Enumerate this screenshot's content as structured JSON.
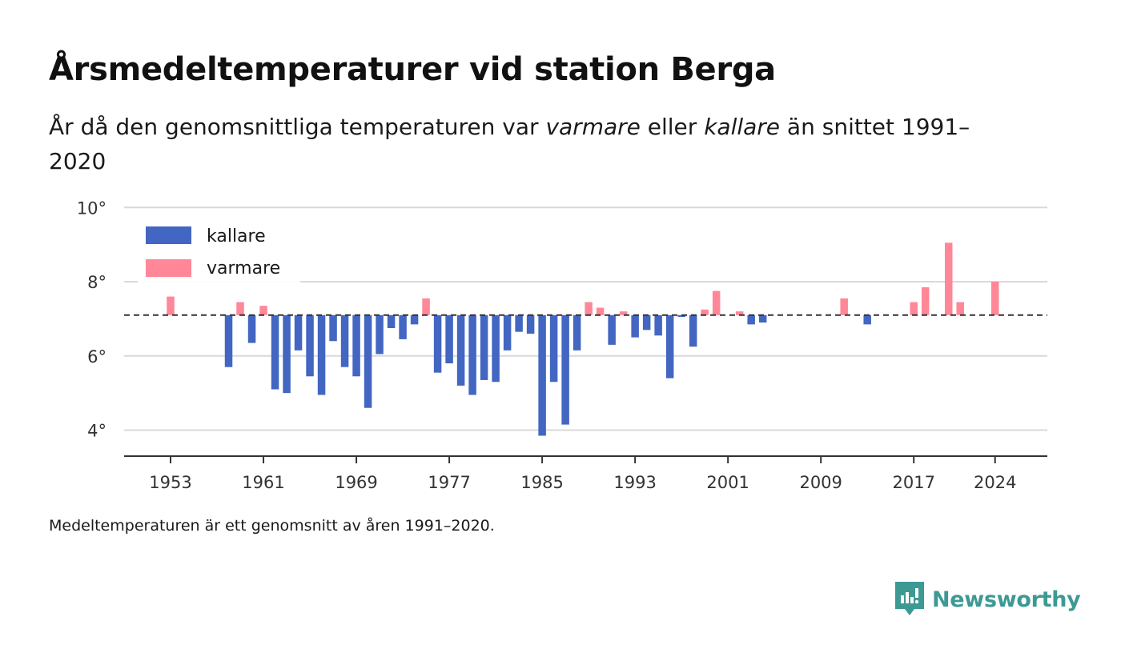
{
  "header": {
    "title": "Årsmedeltemperaturer vid station Berga",
    "subtitle_pre": "År då den genomsnittliga temperaturen var ",
    "subtitle_em1": "varmare",
    "subtitle_mid": " eller ",
    "subtitle_em2": "kallare",
    "subtitle_post": " än snittet 1991–2020"
  },
  "footer": {
    "note": "Medeltemperaturen är ett genomsnitt av åren 1991–2020.",
    "brand": "Newsworthy"
  },
  "colors": {
    "colder": "#4266c1",
    "warmer": "#ff8797",
    "brand": "#3d9994",
    "grid": "#d9d9d9",
    "baseline": "#333333"
  },
  "chart_data": {
    "type": "bar",
    "baseline": 7.1,
    "ylim": [
      3.3,
      10.2
    ],
    "yticks": [
      4,
      6,
      8,
      10
    ],
    "ytick_labels": [
      "4°",
      "6°",
      "8°",
      "10°"
    ],
    "xlim": [
      1949,
      2028.5
    ],
    "xticks": [
      1953,
      1961,
      1969,
      1977,
      1985,
      1993,
      2001,
      2009,
      2017,
      2024
    ],
    "xtick_labels": [
      "1953",
      "1961",
      "1969",
      "1977",
      "1985",
      "1993",
      "2001",
      "2009",
      "2017",
      "2024"
    ],
    "legend": {
      "placement": "top-left",
      "entries": [
        {
          "label": "kallare",
          "key": "colder"
        },
        {
          "label": "varmare",
          "key": "warmer"
        }
      ]
    },
    "grid": true,
    "years": [
      1953,
      1958,
      1959,
      1960,
      1961,
      1962,
      1963,
      1964,
      1965,
      1966,
      1967,
      1968,
      1969,
      1970,
      1971,
      1972,
      1973,
      1974,
      1975,
      1976,
      1977,
      1978,
      1979,
      1980,
      1981,
      1982,
      1983,
      1984,
      1985,
      1986,
      1987,
      1988,
      1989,
      1990,
      1991,
      1992,
      1993,
      1994,
      1995,
      1996,
      1997,
      1998,
      1999,
      2000,
      2002,
      2003,
      2004,
      2011,
      2013,
      2017,
      2018,
      2020,
      2021,
      2024
    ],
    "values": [
      7.6,
      5.7,
      7.45,
      6.35,
      7.35,
      5.1,
      5.0,
      6.15,
      5.45,
      4.95,
      6.4,
      5.7,
      5.45,
      4.6,
      6.05,
      6.75,
      6.45,
      6.85,
      7.55,
      5.55,
      5.8,
      5.2,
      4.95,
      5.35,
      5.3,
      6.15,
      6.65,
      6.6,
      3.85,
      5.3,
      4.15,
      6.15,
      7.45,
      7.3,
      6.3,
      7.2,
      6.5,
      6.7,
      6.55,
      5.4,
      7.05,
      6.25,
      7.25,
      7.75,
      7.2,
      6.85,
      6.9,
      7.55,
      6.85,
      7.45,
      7.85,
      9.05,
      7.45,
      8.0
    ]
  }
}
